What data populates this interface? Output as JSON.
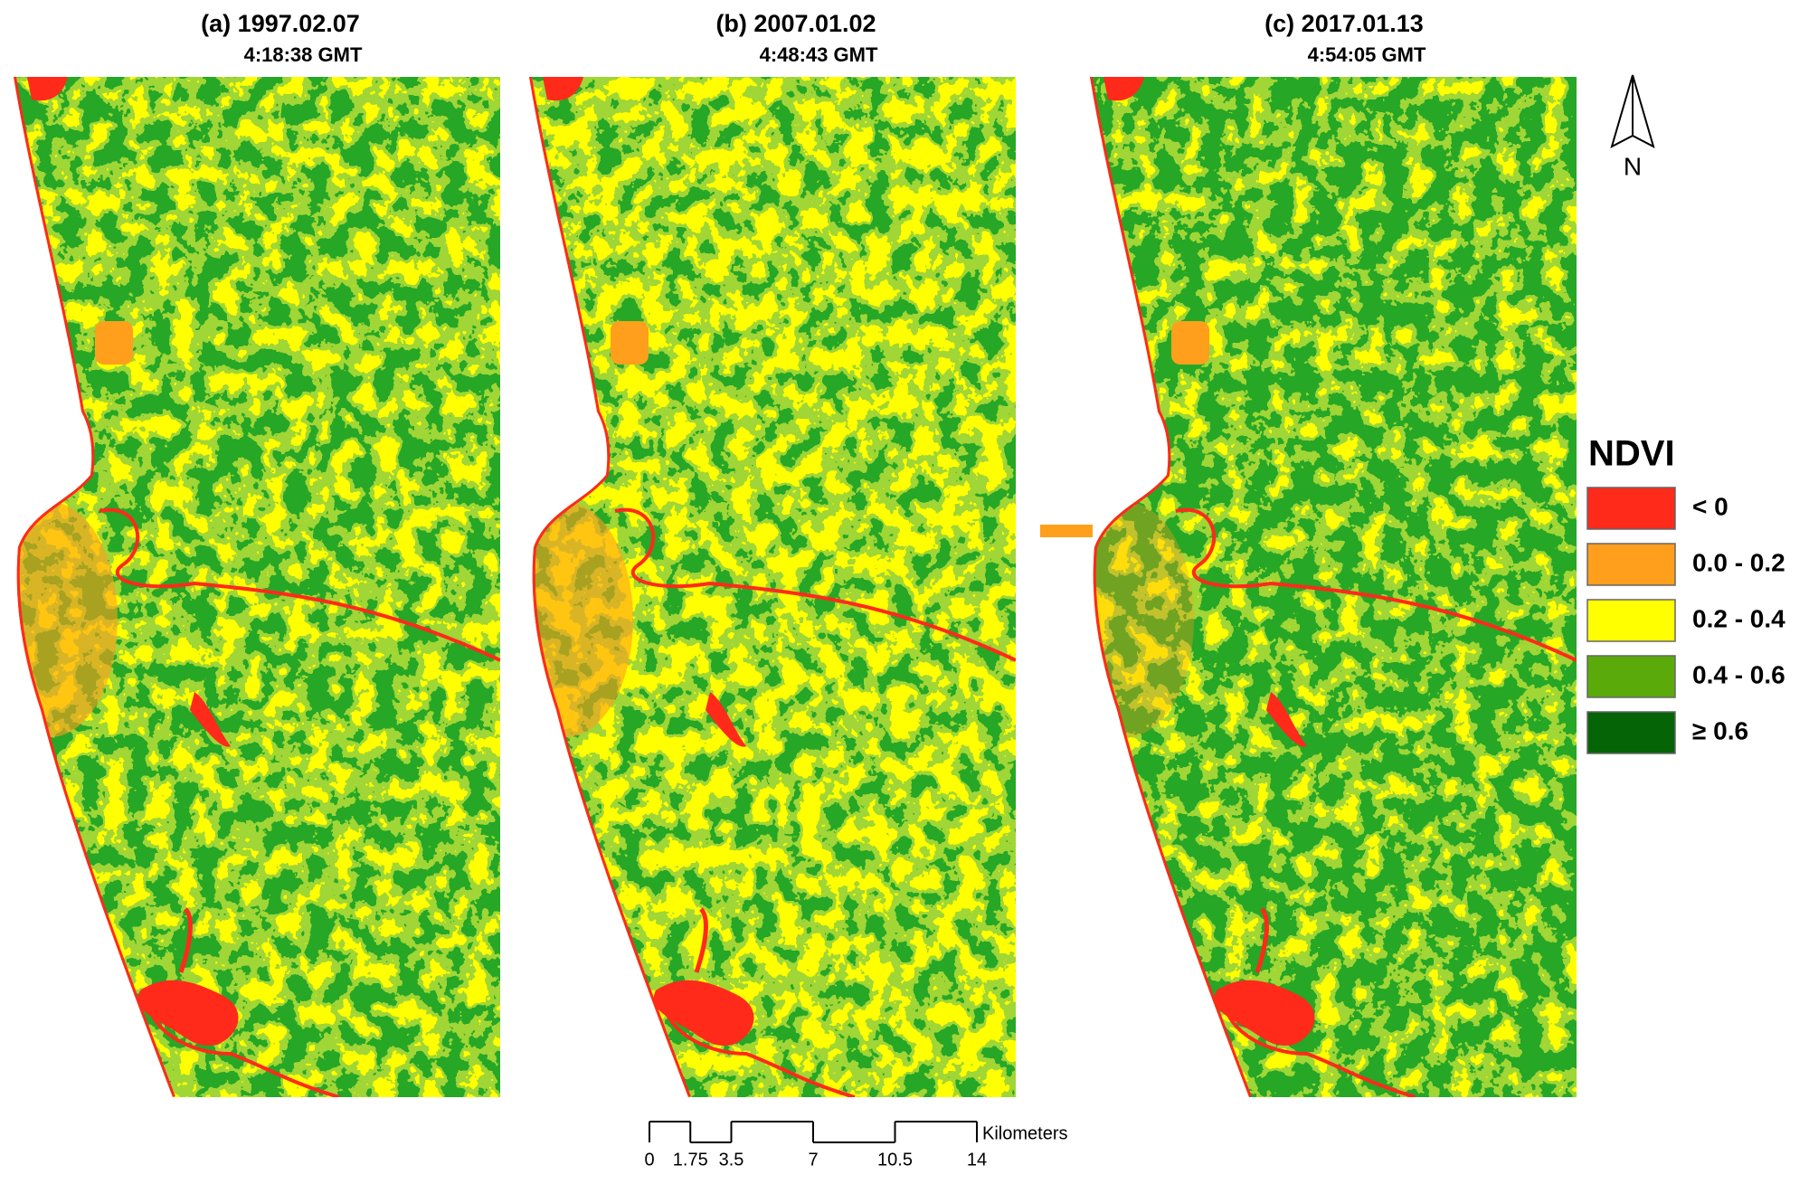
{
  "panels": [
    {
      "title": "(a) 1997.02.07",
      "time": "4:18:38 GMT"
    },
    {
      "title": "(b) 2007.01.02",
      "time": "4:48:43 GMT"
    },
    {
      "title": "(c) 2017.01.13",
      "time": "4:54:05 GMT"
    }
  ],
  "legend": {
    "title": "NDVI",
    "items": [
      {
        "label": "< 0",
        "color": "#ff2a1a"
      },
      {
        "label": "0.0 - 0.2",
        "color": "#ff9f1c"
      },
      {
        "label": "0.2 - 0.4",
        "color": "#ffff00"
      },
      {
        "label": "0.4 - 0.6",
        "color": "#5aab0a"
      },
      {
        "label": "≥ 0.6",
        "color": "#056405"
      }
    ]
  },
  "scale_bar": {
    "ticks": [
      0,
      1.75,
      3.5,
      7,
      10.5,
      14
    ],
    "unit": "Kilometers"
  },
  "north_arrow": {
    "label": "N"
  }
}
